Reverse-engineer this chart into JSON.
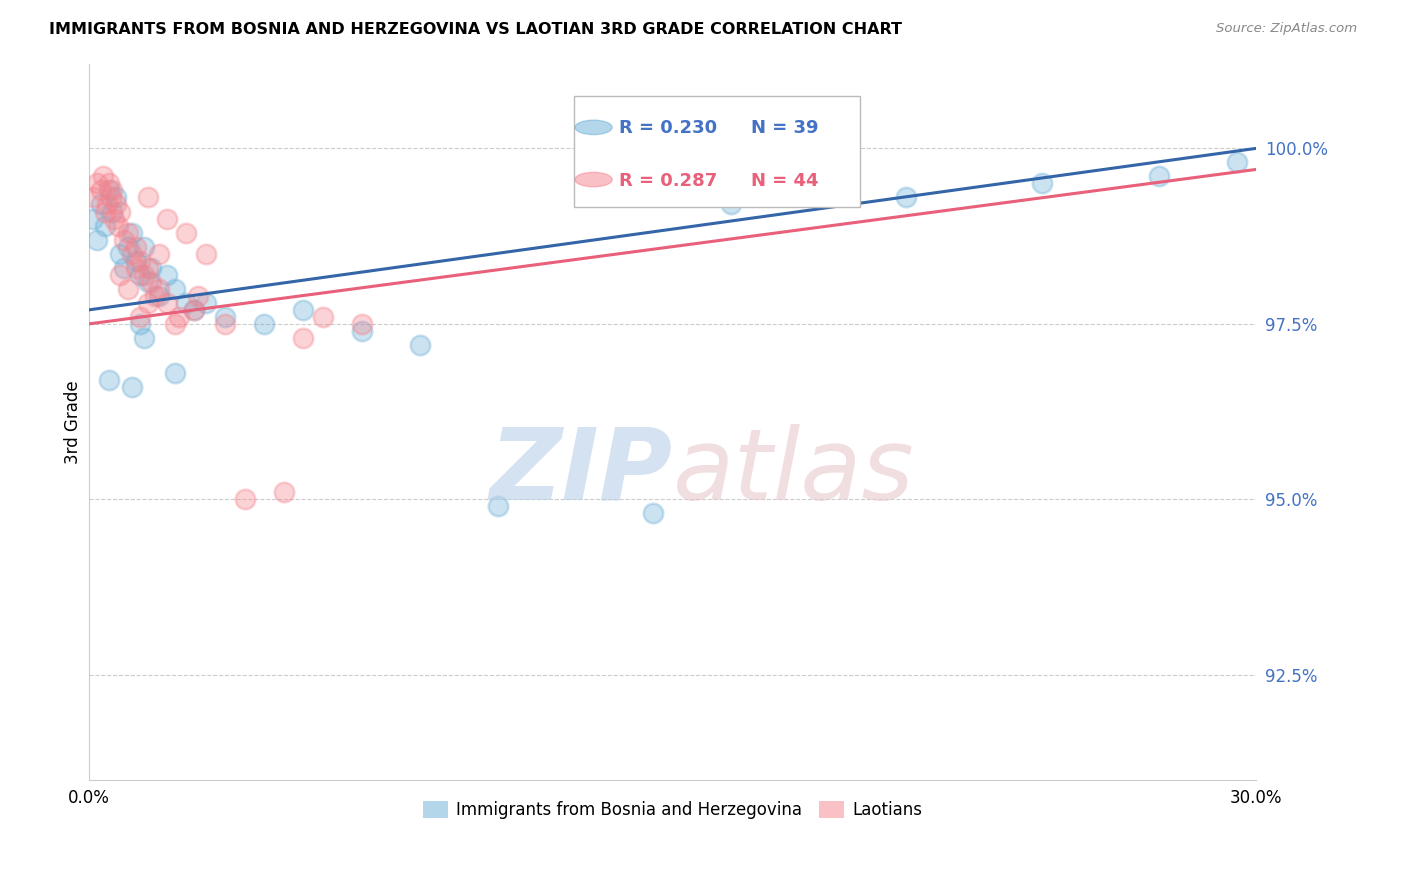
{
  "title": "IMMIGRANTS FROM BOSNIA AND HERZEGOVINA VS LAOTIAN 3RD GRADE CORRELATION CHART",
  "source": "Source: ZipAtlas.com",
  "ylabel": "3rd Grade",
  "xlim": [
    0.0,
    30.0
  ],
  "ylim": [
    91.0,
    101.2
  ],
  "yticks": [
    92.5,
    95.0,
    97.5,
    100.0
  ],
  "ytick_labels": [
    "92.5%",
    "95.0%",
    "97.5%",
    "100.0%"
  ],
  "legend_blue_r": "R = 0.230",
  "legend_blue_n": "N = 39",
  "legend_pink_r": "R = 0.287",
  "legend_pink_n": "N = 44",
  "blue_color": "#6aaed6",
  "pink_color": "#f4828c",
  "blue_line_color": "#3465a8",
  "pink_line_color": "#e8607a",
  "blue_scatter_x": [
    0.1,
    0.2,
    0.3,
    0.4,
    0.5,
    0.6,
    0.7,
    0.8,
    0.9,
    1.0,
    1.1,
    1.2,
    1.3,
    1.4,
    1.5,
    1.6,
    1.8,
    2.0,
    2.2,
    2.5,
    2.7,
    3.0,
    3.5,
    4.5,
    5.5,
    7.0,
    8.5,
    10.5,
    14.5,
    16.5,
    21.0,
    24.5,
    27.5,
    29.5,
    0.5,
    1.1,
    1.3,
    1.4,
    2.2
  ],
  "blue_scatter_y": [
    99.0,
    98.7,
    99.2,
    98.9,
    99.4,
    99.1,
    99.3,
    98.5,
    98.3,
    98.6,
    98.8,
    98.4,
    98.2,
    98.6,
    98.1,
    98.3,
    97.9,
    98.2,
    98.0,
    97.8,
    97.7,
    97.8,
    97.6,
    97.5,
    97.7,
    97.4,
    97.2,
    94.9,
    94.8,
    99.2,
    99.3,
    99.5,
    99.6,
    99.8,
    96.7,
    96.6,
    97.5,
    97.3,
    96.8
  ],
  "pink_scatter_x": [
    0.1,
    0.2,
    0.3,
    0.35,
    0.4,
    0.45,
    0.5,
    0.55,
    0.6,
    0.65,
    0.7,
    0.75,
    0.8,
    0.9,
    1.0,
    1.1,
    1.2,
    1.3,
    1.4,
    1.5,
    1.6,
    1.7,
    1.8,
    2.0,
    2.3,
    2.7,
    3.5,
    4.0,
    5.0,
    6.0,
    7.0,
    1.5,
    2.0,
    2.5,
    3.0,
    1.2,
    1.8,
    0.8,
    1.0,
    2.8,
    5.5,
    1.3,
    1.5,
    2.2
  ],
  "pink_scatter_y": [
    99.3,
    99.5,
    99.4,
    99.6,
    99.1,
    99.2,
    99.5,
    99.3,
    99.4,
    99.0,
    99.2,
    98.9,
    99.1,
    98.7,
    98.8,
    98.5,
    98.6,
    98.4,
    98.2,
    98.3,
    98.1,
    97.9,
    98.0,
    97.8,
    97.6,
    97.7,
    97.5,
    95.0,
    95.1,
    97.6,
    97.5,
    99.3,
    99.0,
    98.8,
    98.5,
    98.3,
    98.5,
    98.2,
    98.0,
    97.9,
    97.3,
    97.6,
    97.8,
    97.5
  ],
  "blue_line_x0": 0.0,
  "blue_line_y0": 97.7,
  "blue_line_x1": 30.0,
  "blue_line_y1": 100.0,
  "pink_line_x0": 0.0,
  "pink_line_y0": 97.5,
  "pink_line_x1": 30.0,
  "pink_line_y1": 99.7
}
